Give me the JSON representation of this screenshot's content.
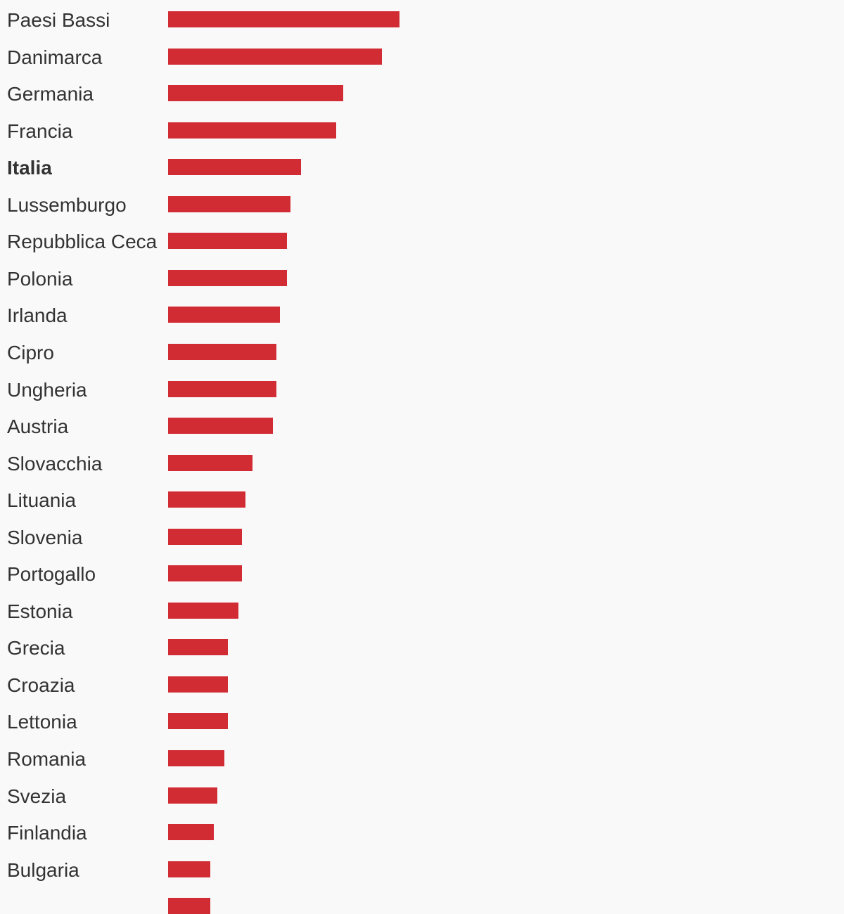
{
  "chart_data": {
    "type": "bar",
    "orientation": "horizontal",
    "title": "",
    "xlabel": "",
    "ylabel": "",
    "xlim": [
      0,
      100
    ],
    "grid": false,
    "legend": "none",
    "bar_color": "#d12b33",
    "highlight_category": "Italia",
    "categories": [
      "Paesi Bassi",
      "Danimarca",
      "Germania",
      "Francia",
      "Italia",
      "Lussemburgo",
      "Repubblica Ceca",
      "Polonia",
      "Irlanda",
      "Cipro",
      "Ungheria",
      "Austria",
      "Slovacchia",
      "Lituania",
      "Slovenia",
      "Portogallo",
      "Estonia",
      "Grecia",
      "Croazia",
      "Lettonia",
      "Romania",
      "Svezia",
      "Finlandia",
      "Bulgaria",
      ""
    ],
    "values": [
      66,
      61,
      50,
      48,
      38,
      35,
      34,
      34,
      32,
      31,
      31,
      30,
      24,
      22,
      21,
      21,
      20,
      17,
      17,
      17,
      16,
      14,
      13,
      12,
      12
    ]
  }
}
